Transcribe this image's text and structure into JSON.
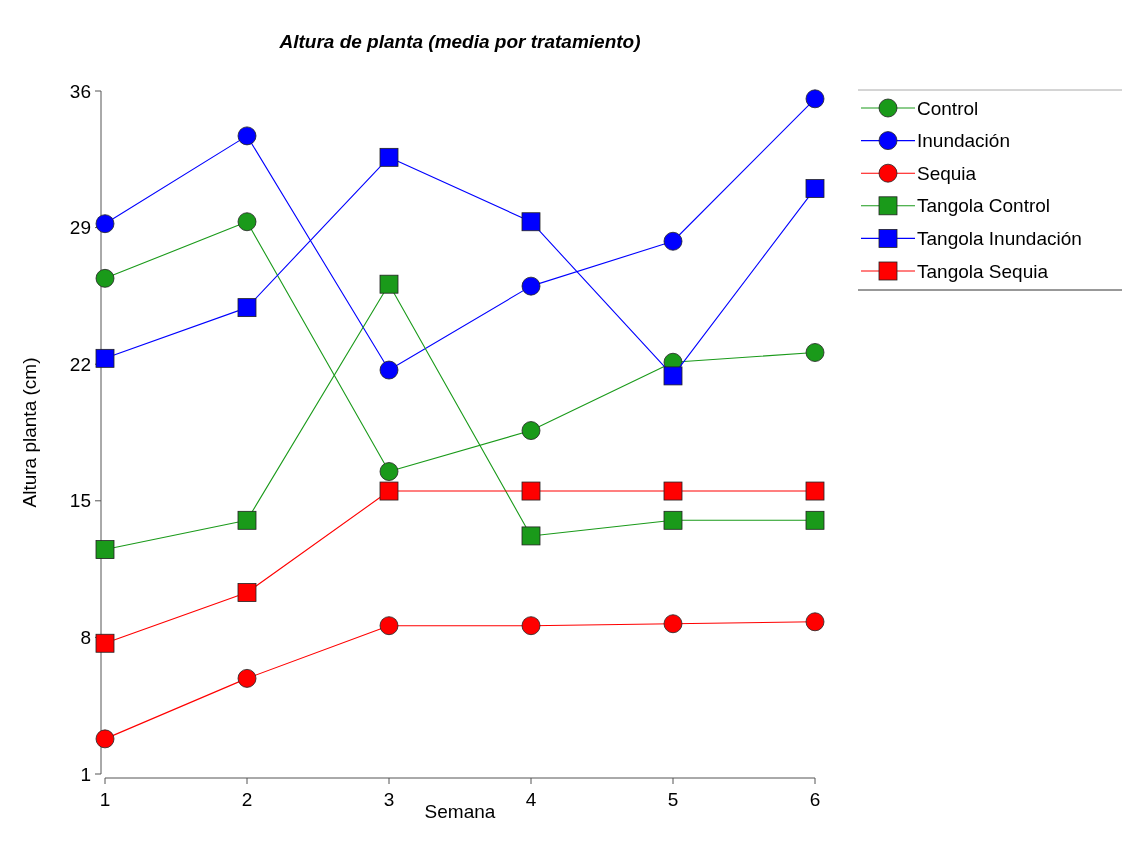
{
  "chart_data": {
    "type": "line",
    "title": "Altura de planta (media por tratamiento)",
    "xlabel": "Semana",
    "ylabel": "Altura planta (cm)",
    "x": [
      1,
      2,
      3,
      4,
      5,
      6
    ],
    "xlim": [
      1,
      6
    ],
    "xticks": [
      1,
      2,
      3,
      4,
      5,
      6
    ],
    "ylim": [
      1,
      36
    ],
    "yticks": [
      1,
      8,
      15,
      22,
      29,
      36
    ],
    "grid": false,
    "legend": "top right",
    "series": [
      {
        "name": "Control",
        "color": "#1a9a1a",
        "marker": "circle",
        "values": [
          26.4,
          29.3,
          16.5,
          18.6,
          22.1,
          22.6
        ]
      },
      {
        "name": "Inundación",
        "color": "#0000ff",
        "marker": "circle",
        "values": [
          29.2,
          33.7,
          21.7,
          26.0,
          28.3,
          35.6
        ]
      },
      {
        "name": "Sequia",
        "color": "#ff0000",
        "marker": "circle",
        "values": [
          2.8,
          5.9,
          8.6,
          8.6,
          8.7,
          8.8
        ]
      },
      {
        "name": "Tangola Control",
        "color": "#1a9a1a",
        "marker": "square",
        "values": [
          12.5,
          14.0,
          26.1,
          13.2,
          14.0,
          14.0
        ]
      },
      {
        "name": "Tangola Inundación",
        "color": "#0000ff",
        "marker": "square",
        "values": [
          22.3,
          24.9,
          32.6,
          29.3,
          21.4,
          31.0
        ]
      },
      {
        "name": "Tangola Sequia",
        "color": "#ff0000",
        "marker": "square",
        "values": [
          7.7,
          10.3,
          15.5,
          15.5,
          15.5,
          15.5
        ]
      }
    ]
  }
}
